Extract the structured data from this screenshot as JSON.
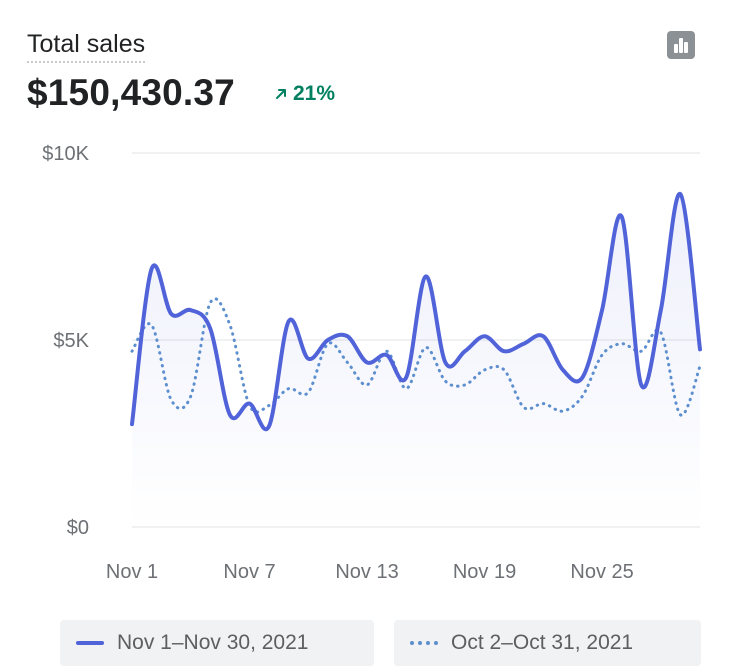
{
  "header": {
    "title": "Total sales",
    "total": "$150,430.37",
    "change": "21%"
  },
  "icons": {
    "chart_toggle": "bar-chart-icon",
    "change_arrow": "arrow-up-right-icon"
  },
  "colors": {
    "primary": "#5163d9",
    "comparison": "#5d8fcf",
    "positive": "#008060"
  },
  "legend": {
    "primary_label": "Nov 1–Nov 30, 2021",
    "comparison_label": "Oct 2–Oct 31, 2021"
  },
  "chart_data": {
    "type": "line",
    "ylim": [
      0,
      10000
    ],
    "yticks": [
      0,
      5000,
      10000
    ],
    "ytick_labels": [
      "$0",
      "$5K",
      "$10K"
    ],
    "xtick_labels": [
      "Nov 1",
      "Nov 7",
      "Nov 13",
      "Nov 19",
      "Nov 25"
    ],
    "xticks_at": [
      0,
      6,
      12,
      18,
      24
    ],
    "grid": true,
    "legend_position": "bottom",
    "series": [
      {
        "name": "Nov 1–Nov 30, 2021",
        "style": "solid",
        "values": [
          2750,
          6900,
          5700,
          5800,
          5300,
          3000,
          3300,
          2700,
          5500,
          4500,
          5000,
          5100,
          4400,
          4600,
          4000,
          6700,
          4400,
          4700,
          5100,
          4700,
          4900,
          5100,
          4200,
          4000,
          5800,
          8300,
          3800,
          5800,
          8900,
          4750
        ]
      },
      {
        "name": "Oct 2–Oct 31, 2021",
        "style": "dotted",
        "values": [
          4700,
          5400,
          3400,
          3500,
          6000,
          5400,
          3250,
          3250,
          3700,
          3600,
          4900,
          4400,
          3800,
          4700,
          3700,
          4800,
          3900,
          3800,
          4200,
          4200,
          3200,
          3300,
          3100,
          3500,
          4600,
          4900,
          4700,
          5200,
          3000,
          4300
        ]
      }
    ]
  }
}
